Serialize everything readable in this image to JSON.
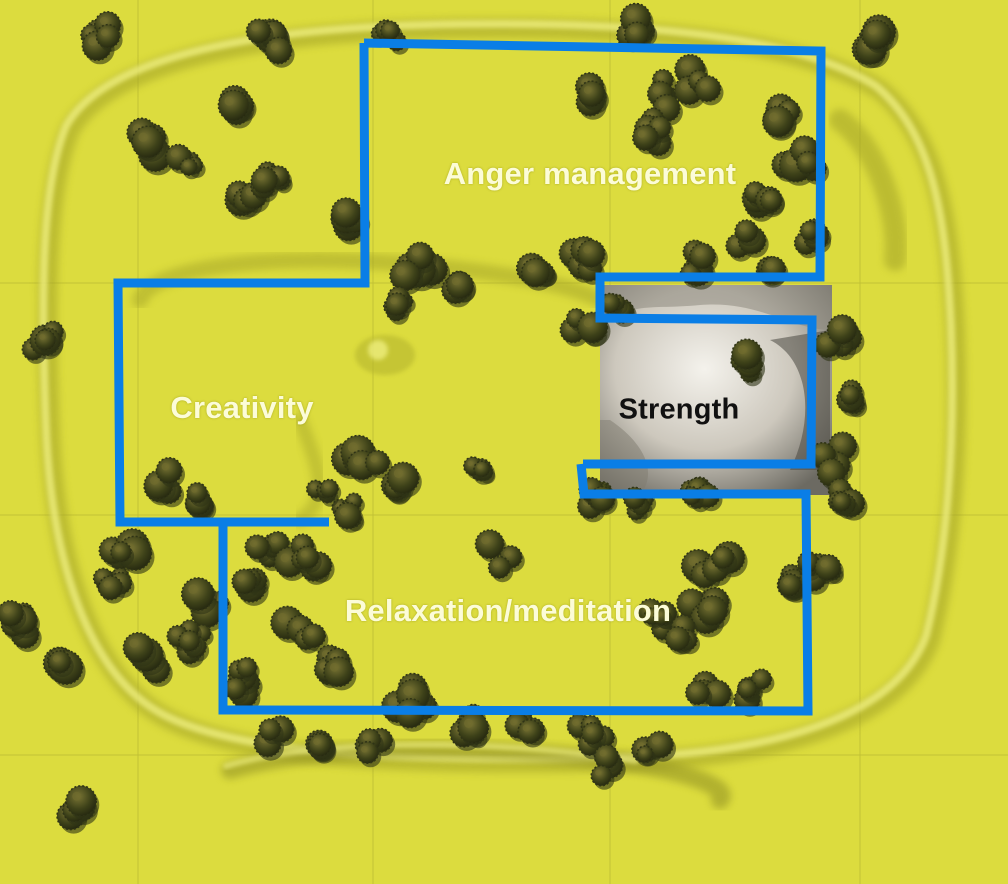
{
  "map": {
    "zones": [
      {
        "id": "anger",
        "label": "Anger management"
      },
      {
        "id": "creativity",
        "label": "Creativity"
      },
      {
        "id": "strength",
        "label": "Strength"
      },
      {
        "id": "relax",
        "label": "Relaxation/meditation"
      }
    ]
  },
  "colors": {
    "terrain": "#dcdc3e",
    "terrain_shadow": "#a8a82a",
    "terrain_highlight": "#f2f27a",
    "zone_outline": "#0a7ee6",
    "tree_dark": "#2f3316",
    "tree_light": "#6f6b2e",
    "rock": "#cfcac0"
  }
}
